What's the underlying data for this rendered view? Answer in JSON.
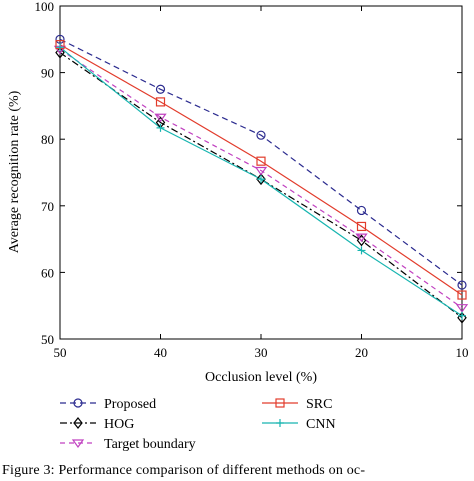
{
  "chart_data": {
    "type": "line",
    "x": [
      50,
      40,
      30,
      20,
      10
    ],
    "series": [
      {
        "name": "Proposed",
        "values": [
          95.0,
          87.5,
          80.6,
          69.3,
          58.1
        ],
        "color": "#2b2b8f",
        "dash": "6,4",
        "marker": "circle"
      },
      {
        "name": "HOG",
        "values": [
          93.0,
          82.5,
          74.0,
          64.8,
          53.2
        ],
        "color": "#000000",
        "dash": "7,3,2,3",
        "marker": "diamond"
      },
      {
        "name": "Target boundary",
        "values": [
          93.5,
          83.3,
          75.3,
          65.3,
          54.7
        ],
        "color": "#c040c0",
        "dash": "5,4",
        "marker": "triangle-down"
      },
      {
        "name": "SRC",
        "values": [
          94.2,
          85.6,
          76.7,
          66.9,
          56.6
        ],
        "color": "#e23c2c",
        "dash": "",
        "marker": "square"
      },
      {
        "name": "CNN",
        "values": [
          93.8,
          81.7,
          74.0,
          63.3,
          53.5
        ],
        "color": "#17b5b0",
        "dash": "",
        "marker": "plus"
      }
    ],
    "xlabel": "Occlusion level (%)",
    "ylabel": "Average recognition rate (%)",
    "xlim": [
      50,
      10
    ],
    "ylim": [
      50,
      100
    ],
    "x_ticks": [
      "50",
      "40",
      "30",
      "20",
      "10"
    ],
    "y_ticks": [
      "50",
      "60",
      "70",
      "80",
      "90",
      "100"
    ],
    "legend": "below plot, two columns",
    "grid": false
  },
  "caption": "Figure 3: Performance comparison of different methods on oc-"
}
